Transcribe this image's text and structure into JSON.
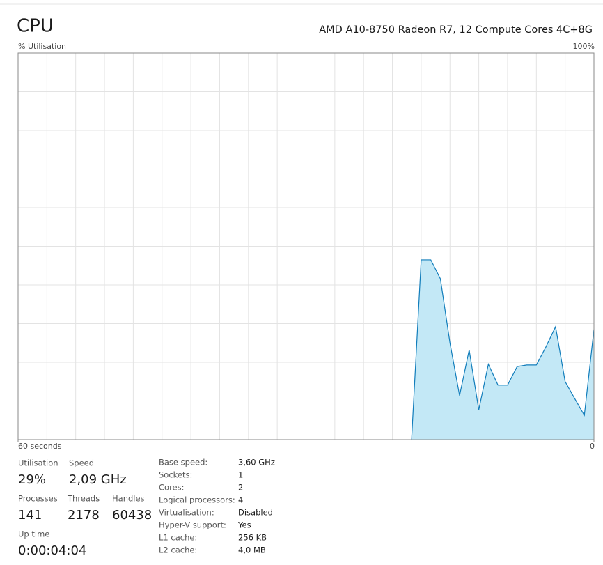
{
  "header": {
    "title": "CPU",
    "processor": "AMD A10-8750 Radeon R7, 12 Compute Cores 4C+8G"
  },
  "chart_data": {
    "type": "area",
    "ylabel": "% Utilisation",
    "x": [
      19,
      18,
      17,
      16,
      15,
      14,
      13,
      12,
      11,
      10,
      9,
      8,
      7,
      6,
      5,
      4,
      3,
      2,
      1,
      0
    ],
    "values": [
      0,
      46.5,
      46.5,
      41.6,
      25,
      11.4,
      23.2,
      7.7,
      19.5,
      14.1,
      14.1,
      18.9,
      19.3,
      19.3,
      24,
      29.2,
      15,
      10.6,
      6.3,
      28.5
    ],
    "color": "#117dbb",
    "fill": "#c3e8f6",
    "xlim": [
      60,
      0
    ],
    "xticks": [
      {
        "value": 60,
        "label": "60 seconds"
      },
      0
    ],
    "ylim": [
      0,
      100
    ],
    "yticks": [
      {
        "value": 100,
        "label": "100%"
      }
    ],
    "grid": {
      "columns": 20,
      "rows": 10
    }
  },
  "stats": [
    {
      "label": "Utilisation",
      "value": "29%"
    },
    {
      "label": "Speed",
      "value": "2,09 GHz"
    },
    {
      "label": "Processes",
      "value": "141"
    },
    {
      "label": "Threads",
      "value": "2178"
    },
    {
      "label": "Handles",
      "value": "60438"
    },
    {
      "label": "Up time",
      "value": "0:00:04:04"
    }
  ],
  "details": [
    [
      "Base speed:",
      "3,60 GHz"
    ],
    [
      "Sockets:",
      "1"
    ],
    [
      "Cores:",
      "2"
    ],
    [
      "Logical processors:",
      "4"
    ],
    [
      "Virtualisation:",
      "Disabled"
    ],
    [
      "Hyper-V support:",
      "Yes"
    ],
    [
      "L1 cache:",
      "256 KB"
    ],
    [
      "L2 cache:",
      "4,0 MB"
    ]
  ]
}
